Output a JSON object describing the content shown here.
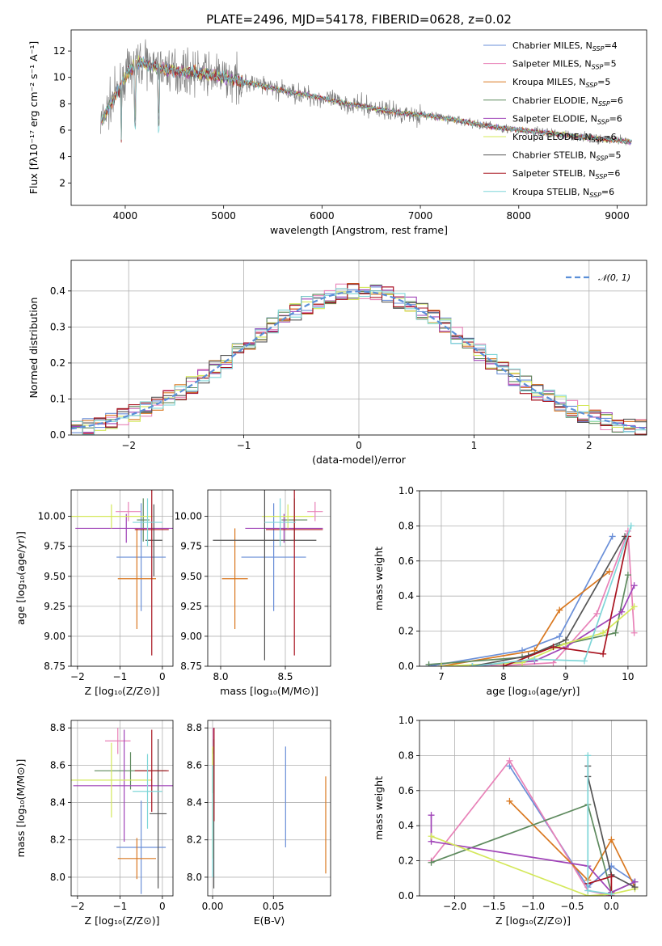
{
  "figure": {
    "title": "PLATE=2496, MJD=54178, FIBERID=0628, z=0.02"
  },
  "colors": {
    "chabrier_miles": "#6a8fd8",
    "salpeter_miles": "#e882b8",
    "kroupa_miles": "#d97820",
    "chabrier_elodie": "#5e8a5e",
    "salpeter_elodie": "#a044b8",
    "kroupa_elodie": "#d4e85a",
    "chabrier_stelib": "#555555",
    "salpeter_stelib": "#a8131f",
    "kroupa_stelib": "#7fd6d8",
    "data": "#7f7f7f",
    "normal": "#5b8fd8"
  },
  "chart_data": [
    {
      "id": "spectrum",
      "type": "line",
      "title": "PLATE=2496, MJD=54178, FIBERID=0628, z=0.02",
      "xlabel": "wavelength [Angstrom, rest frame]",
      "ylabel": "Flux [fλ10⁻¹⁷ erg cm⁻² s⁻¹ A⁻¹]",
      "xlim": [
        3450,
        9300
      ],
      "ylim": [
        0.3,
        13.6
      ],
      "xticks": [
        "4000",
        "5000",
        "6000",
        "7000",
        "8000",
        "9000"
      ],
      "yticks": [
        "2",
        "4",
        "6",
        "8",
        "10",
        "12"
      ],
      "grid": false,
      "legend_position": "top-right",
      "continuum_x": [
        3750,
        3850,
        3950,
        4050,
        4150,
        4300,
        4500,
        4700,
        5000,
        5300,
        5600,
        5900,
        6200,
        6500,
        6800,
        7100,
        7400,
        7700,
        8000,
        8300,
        8600,
        8900,
        9150
      ],
      "continuum_y": [
        6.5,
        8.0,
        9.3,
        10.6,
        11.2,
        10.8,
        10.5,
        10.4,
        10.0,
        9.5,
        9.0,
        8.6,
        8.1,
        7.7,
        7.3,
        7.1,
        6.7,
        6.3,
        6.0,
        5.8,
        5.5,
        5.3,
        5.1
      ],
      "series": [
        {
          "name": "Chabrier MILES, N",
          "n_ssp": "=4"
        },
        {
          "name": "Salpeter MILES, N",
          "n_ssp": "=5"
        },
        {
          "name": "Kroupa MILES, N",
          "n_ssp": "=5"
        },
        {
          "name": "Chabrier ELODIE, N",
          "n_ssp": "=6"
        },
        {
          "name": "Salpeter ELODIE, N",
          "n_ssp": "=6"
        },
        {
          "name": "Kroupa ELODIE, N",
          "n_ssp": "=6"
        },
        {
          "name": "Chabrier STELIB, N",
          "n_ssp": "=5"
        },
        {
          "name": "Salpeter STELIB, N",
          "n_ssp": "=6"
        },
        {
          "name": "Kroupa STELIB, N",
          "n_ssp": "=6"
        }
      ]
    },
    {
      "id": "residuals",
      "type": "line",
      "xlabel": "(data-model)/error",
      "ylabel": "Normed distribution",
      "xlim": [
        -2.5,
        2.5
      ],
      "ylim": [
        0.0,
        0.485
      ],
      "xticks": [
        "−2",
        "−1",
        "0",
        "1",
        "2"
      ],
      "yticks": [
        "0.0",
        "0.1",
        "0.2",
        "0.3",
        "0.4"
      ],
      "grid": true,
      "legend_position": "top-right",
      "legend_label": "𝒩(0, 1)",
      "bin_width": 0.1
    },
    {
      "id": "age_vs_Z",
      "type": "scatter",
      "xlabel": "Z [log₁₀(Z/Z⊙)]",
      "ylabel": "age  [log₁₀(age/yr)]",
      "xlim": [
        -2.15,
        0.25
      ],
      "ylim": [
        8.75,
        10.22
      ],
      "xticks": [
        "−2",
        "−1",
        "0"
      ],
      "yticks": [
        "8.75",
        "9.00",
        "9.25",
        "9.50",
        "9.75",
        "10.00"
      ],
      "grid": true,
      "points": [
        {
          "series": "Chabrier MILES",
          "x": -0.5,
          "xerr": 0.58,
          "y": 9.66,
          "yerr": 0.45
        },
        {
          "series": "Salpeter MILES",
          "x": -0.8,
          "xerr": 0.3,
          "y": 10.04,
          "yerr": 0.08
        },
        {
          "series": "Kroupa MILES",
          "x": -0.6,
          "xerr": 0.45,
          "y": 9.48,
          "yerr": 0.42
        },
        {
          "series": "Chabrier ELODIE",
          "x": -0.45,
          "xerr": 0.15,
          "y": 9.97,
          "yerr": 0.18
        },
        {
          "series": "Salpeter ELODIE",
          "x": -0.85,
          "xerr": 1.2,
          "y": 9.9,
          "yerr": 0.12
        },
        {
          "series": "Kroupa ELODIE",
          "x": -1.2,
          "xerr": 0.95,
          "y": 10.0,
          "yerr": 0.1
        },
        {
          "series": "Chabrier STELIB",
          "x": -0.2,
          "xerr": 0.2,
          "y": 9.8,
          "yerr": 0.3
        },
        {
          "series": "Salpeter STELIB",
          "x": -0.25,
          "xerr": 0.4,
          "y": 9.89,
          "yerr": 1.05
        },
        {
          "series": "Kroupa STELIB",
          "x": -0.35,
          "xerr": 0.35,
          "y": 9.95,
          "yerr": 0.2
        }
      ]
    },
    {
      "id": "age_vs_mass",
      "type": "scatter",
      "xlabel": "mass [log₁₀(M/M⊙)]",
      "ylabel": "",
      "xlim": [
        7.9,
        8.85
      ],
      "ylim": [
        8.75,
        10.22
      ],
      "xticks": [
        "8.0",
        "8.5"
      ],
      "yticks": [
        "8.75",
        "9.00",
        "9.25",
        "9.50",
        "9.75",
        "10.00"
      ],
      "grid": true,
      "points": [
        {
          "series": "Chabrier MILES",
          "x": 8.41,
          "xerr": 0.25,
          "y": 9.66,
          "yerr": 0.45
        },
        {
          "series": "Salpeter MILES",
          "x": 8.73,
          "xerr": 0.06,
          "y": 10.04,
          "yerr": 0.08
        },
        {
          "series": "Kroupa MILES",
          "x": 8.11,
          "xerr": 0.1,
          "y": 9.48,
          "yerr": 0.42
        },
        {
          "series": "Chabrier ELODIE",
          "x": 8.57,
          "xerr": 0.1,
          "y": 9.97,
          "yerr": 0.18
        },
        {
          "series": "Salpeter ELODIE",
          "x": 8.49,
          "xerr": 0.3,
          "y": 9.9,
          "yerr": 0.12
        },
        {
          "series": "Kroupa ELODIE",
          "x": 8.52,
          "xerr": 0.2,
          "y": 10.0,
          "yerr": 0.1
        },
        {
          "series": "Chabrier STELIB",
          "x": 8.34,
          "xerr": 0.4,
          "y": 9.8,
          "yerr": 1.0
        },
        {
          "series": "Salpeter STELIB",
          "x": 8.57,
          "xerr": 0.22,
          "y": 9.89,
          "yerr": 1.05
        },
        {
          "series": "Kroupa STELIB",
          "x": 8.46,
          "xerr": 0.12,
          "y": 9.95,
          "yerr": 0.2
        }
      ]
    },
    {
      "id": "massweight_vs_age",
      "type": "line",
      "xlabel": "age  [log₁₀(age/yr)]",
      "ylabel": "mass weight",
      "xlim": [
        6.65,
        10.3
      ],
      "ylim": [
        0.0,
        1.0
      ],
      "xticks": [
        "7",
        "8",
        "9",
        "10"
      ],
      "yticks": [
        "0.0",
        "0.2",
        "0.4",
        "0.6",
        "0.8",
        "1.0"
      ],
      "grid": true,
      "series": [
        {
          "name": "Chabrier MILES",
          "x": [
            6.8,
            8.3,
            8.9,
            9.75
          ],
          "y": [
            0.0,
            0.09,
            0.17,
            0.74
          ]
        },
        {
          "name": "Salpeter MILES",
          "x": [
            7.8,
            8.8,
            9.5,
            10.0,
            10.1
          ],
          "y": [
            0.0,
            0.02,
            0.3,
            0.77,
            0.19
          ]
        },
        {
          "name": "Kroupa MILES",
          "x": [
            7.0,
            8.5,
            8.9,
            9.7
          ],
          "y": [
            0.0,
            0.09,
            0.32,
            0.54
          ]
        },
        {
          "name": "Chabrier ELODIE",
          "x": [
            6.8,
            8.3,
            8.9,
            9.8,
            10.0
          ],
          "y": [
            0.01,
            0.05,
            0.12,
            0.19,
            0.52
          ]
        },
        {
          "name": "Salpeter ELODIE",
          "x": [
            7.5,
            8.5,
            9.0,
            9.9,
            10.1
          ],
          "y": [
            0.0,
            0.03,
            0.11,
            0.31,
            0.46
          ]
        },
        {
          "name": "Kroupa ELODIE",
          "x": [
            7.0,
            8.3,
            9.0,
            9.6,
            10.1
          ],
          "y": [
            0.0,
            0.02,
            0.13,
            0.19,
            0.34
          ]
        },
        {
          "name": "Chabrier STELIB",
          "x": [
            7.5,
            8.4,
            9.0,
            9.95
          ],
          "y": [
            0.0,
            0.06,
            0.15,
            0.74
          ]
        },
        {
          "name": "Salpeter STELIB",
          "x": [
            8.0,
            8.8,
            9.6,
            10.0
          ],
          "y": [
            0.0,
            0.11,
            0.07,
            0.74
          ]
        },
        {
          "name": "Kroupa STELIB",
          "x": [
            7.5,
            8.5,
            9.3,
            10.05
          ],
          "y": [
            0.0,
            0.04,
            0.03,
            0.8
          ]
        }
      ]
    },
    {
      "id": "mass_vs_Z",
      "type": "scatter",
      "xlabel": "Z [log₁₀(Z/Z⊙)]",
      "ylabel": "mass [log₁₀(M/M⊙)]",
      "xlim": [
        -2.15,
        0.25
      ],
      "ylim": [
        7.9,
        8.84
      ],
      "xticks": [
        "−2",
        "−1",
        "0"
      ],
      "yticks": [
        "8.0",
        "8.2",
        "8.4",
        "8.6",
        "8.8"
      ],
      "grid": true,
      "points": [
        {
          "series": "Chabrier MILES",
          "x": -0.5,
          "xerr": 0.58,
          "y": 8.16,
          "yerr": 0.25
        },
        {
          "series": "Salpeter MILES",
          "x": -1.05,
          "xerr": 0.3,
          "y": 8.73,
          "yerr": 0.07
        },
        {
          "series": "Kroupa MILES",
          "x": -0.6,
          "xerr": 0.45,
          "y": 8.1,
          "yerr": 0.11
        },
        {
          "series": "Chabrier ELODIE",
          "x": -0.75,
          "xerr": 0.85,
          "y": 8.57,
          "yerr": 0.1
        },
        {
          "series": "Salpeter ELODIE",
          "x": -0.9,
          "xerr": 1.2,
          "y": 8.49,
          "yerr": 0.3
        },
        {
          "series": "Kroupa ELODIE",
          "x": -1.2,
          "xerr": 0.95,
          "y": 8.52,
          "yerr": 0.2
        },
        {
          "series": "Chabrier STELIB",
          "x": -0.1,
          "xerr": 0.2,
          "y": 8.34,
          "yerr": 0.4
        },
        {
          "series": "Salpeter STELIB",
          "x": -0.25,
          "xerr": 0.4,
          "y": 8.57,
          "yerr": 0.22
        },
        {
          "series": "Kroupa STELIB",
          "x": -0.35,
          "xerr": 0.35,
          "y": 8.46,
          "yerr": 0.2
        }
      ]
    },
    {
      "id": "mass_vs_ebv",
      "type": "scatter",
      "xlabel": "E(B-V)",
      "ylabel": "",
      "xlim": [
        -0.004,
        0.097
      ],
      "ylim": [
        7.9,
        8.84
      ],
      "xticks": [
        "0.00",
        "0.05"
      ],
      "yticks": [
        "8.0",
        "8.2",
        "8.4",
        "8.6",
        "8.8"
      ],
      "grid": true,
      "points": [
        {
          "series": "Chabrier MILES",
          "x": 0.06,
          "y": 8.43,
          "yerr": 0.27
        },
        {
          "series": "Salpeter MILES",
          "x": 0.0005,
          "y": 8.73,
          "yerr": 0.07
        },
        {
          "series": "Kroupa MILES",
          "x": 0.093,
          "y": 8.28,
          "yerr": 0.26
        },
        {
          "series": "Chabrier ELODIE",
          "x": 0.0,
          "y": 8.57,
          "yerr": 0.12
        },
        {
          "series": "Salpeter ELODIE",
          "x": 0.001,
          "y": 8.7,
          "yerr": 0.1
        },
        {
          "series": "Kroupa ELODIE",
          "x": 0.0,
          "y": 8.4,
          "yerr": 0.3
        },
        {
          "series": "Chabrier STELIB",
          "x": 0.001,
          "y": 8.34,
          "yerr": 0.4
        },
        {
          "series": "Salpeter STELIB",
          "x": 0.0012,
          "y": 8.55,
          "yerr": 0.25
        },
        {
          "series": "Kroupa STELIB",
          "x": 0.0,
          "y": 8.3,
          "yerr": 0.3
        }
      ]
    },
    {
      "id": "massweight_vs_Z",
      "type": "line",
      "xlabel": "Z [log₁₀(Z/Z⊙)]",
      "ylabel": "mass weight",
      "xlim": [
        -2.45,
        0.45
      ],
      "ylim": [
        0.0,
        1.0
      ],
      "xticks": [
        "−2.0",
        "−1.5",
        "−1.0",
        "−0.5",
        "0.0"
      ],
      "yticks": [
        "0.0",
        "0.2",
        "0.4",
        "0.6",
        "0.8",
        "1.0"
      ],
      "grid": true,
      "series": [
        {
          "name": "Chabrier MILES",
          "x": [
            -1.3,
            -0.3,
            0.0,
            0.3
          ],
          "y": [
            0.74,
            0.05,
            0.17,
            0.08
          ]
        },
        {
          "name": "Salpeter MILES",
          "x": [
            -2.3,
            -1.3,
            -0.3,
            0.0
          ],
          "y": [
            0.2,
            0.77,
            0.03,
            0.0
          ]
        },
        {
          "name": "Kroupa MILES",
          "x": [
            -1.3,
            -0.3,
            0.0,
            0.3
          ],
          "y": [
            0.54,
            0.09,
            0.32,
            0.05
          ]
        },
        {
          "name": "Chabrier ELODIE",
          "x": [
            -2.3,
            -0.3,
            0.0,
            0.3
          ],
          "y": [
            0.19,
            0.52,
            0.02,
            0.08
          ]
        },
        {
          "name": "Salpeter ELODIE",
          "x": [
            -2.3,
            -2.3,
            -0.3,
            0.0,
            0.3
          ],
          "y": [
            0.46,
            0.31,
            0.17,
            0.02,
            0.08
          ]
        },
        {
          "name": "Kroupa ELODIE",
          "x": [
            -2.3,
            -0.3,
            0.0,
            0.3
          ],
          "y": [
            0.34,
            0.0,
            0.01,
            0.04
          ]
        },
        {
          "name": "Chabrier STELIB",
          "x": [
            -0.3,
            -0.3,
            0.0,
            0.3
          ],
          "y": [
            0.74,
            0.68,
            0.12,
            0.05
          ]
        },
        {
          "name": "Salpeter STELIB",
          "x": [
            -0.3,
            0.0,
            0.0
          ],
          "y": [
            0.07,
            0.11,
            0.0
          ]
        },
        {
          "name": "Kroupa STELIB",
          "x": [
            -0.3,
            -0.3,
            0.0
          ],
          "y": [
            0.8,
            0.03,
            0.01
          ]
        }
      ]
    }
  ]
}
